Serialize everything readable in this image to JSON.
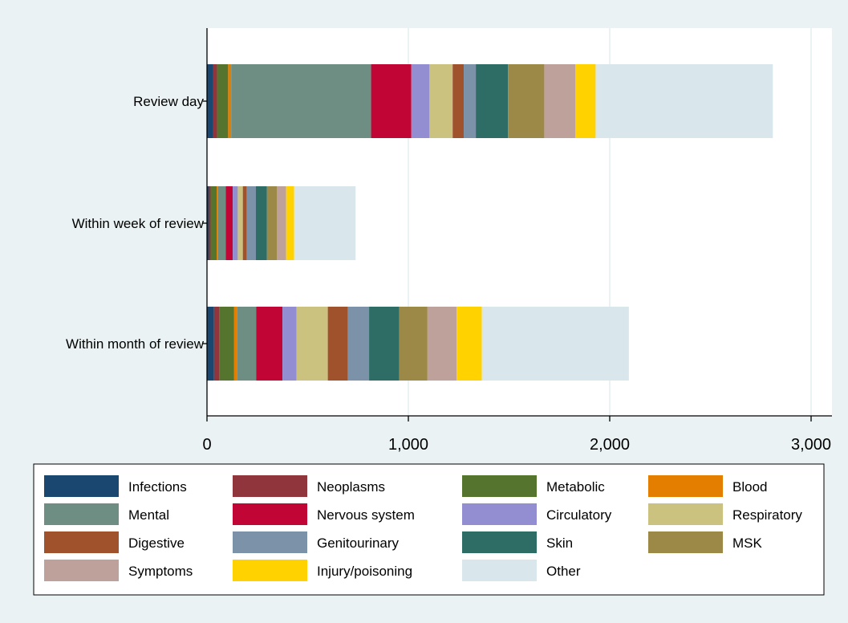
{
  "chart_data": {
    "type": "bar",
    "orientation": "horizontal",
    "stacked": true,
    "title": "",
    "xlabel": "",
    "ylabel": "",
    "xlim": [
      0,
      3100
    ],
    "xticks": [
      0,
      1000,
      2000,
      3000
    ],
    "xtick_labels": [
      "0",
      "1,000",
      "2,000",
      "3,000"
    ],
    "grid": true,
    "legend_position": "bottom",
    "categories": [
      "Review day",
      "Within week of review",
      "Within month of review"
    ],
    "series": [
      {
        "name": "Infections",
        "color": "#1a476f",
        "values": [
          30,
          10,
          35
        ]
      },
      {
        "name": "Neoplasms",
        "color": "#90353b",
        "values": [
          20,
          8,
          25
        ]
      },
      {
        "name": "Metabolic",
        "color": "#55752f",
        "values": [
          55,
          30,
          75
        ]
      },
      {
        "name": "Blood",
        "color": "#e37e00",
        "values": [
          15,
          5,
          15
        ]
      },
      {
        "name": "Mental",
        "color": "#6e8e84",
        "values": [
          695,
          40,
          95
        ]
      },
      {
        "name": "Nervous system",
        "color": "#c10534",
        "values": [
          200,
          35,
          130
        ]
      },
      {
        "name": "Circulatory",
        "color": "#938dd2",
        "values": [
          90,
          25,
          70
        ]
      },
      {
        "name": "Respiratory",
        "color": "#cac27e",
        "values": [
          115,
          25,
          155
        ]
      },
      {
        "name": "Digestive",
        "color": "#a0522d",
        "values": [
          55,
          20,
          100
        ]
      },
      {
        "name": "Genitourinary",
        "color": "#7b92a8",
        "values": [
          60,
          45,
          105
        ]
      },
      {
        "name": "Skin",
        "color": "#2d6d66",
        "values": [
          160,
          55,
          150
        ]
      },
      {
        "name": "MSK",
        "color": "#9c8847",
        "values": [
          180,
          50,
          140
        ]
      },
      {
        "name": "Symptoms",
        "color": "#bfa19c",
        "values": [
          155,
          45,
          145
        ]
      },
      {
        "name": "Injury/poisoning",
        "color": "#ffd200",
        "values": [
          100,
          40,
          125
        ]
      },
      {
        "name": "Other",
        "color": "#d9e6eb",
        "values": [
          880,
          305,
          730
        ]
      }
    ]
  }
}
